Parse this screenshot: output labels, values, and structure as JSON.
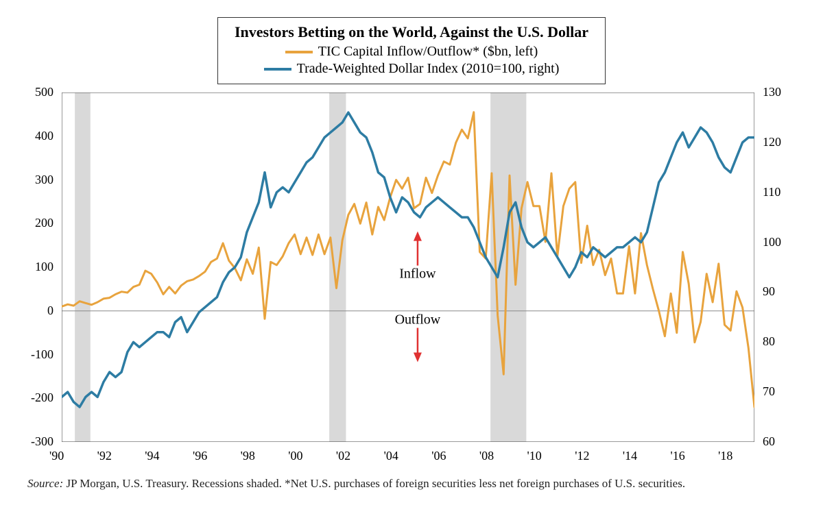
{
  "chart": {
    "type": "line",
    "title": "Investors Betting on the World, Against the U.S. Dollar",
    "title_fontsize": 22,
    "title_fontweight": "bold",
    "background_color": "#ffffff",
    "plot_border_color": "#555555",
    "series": [
      {
        "name": "TIC Capital Inflow/Outflow* ($bn, left)",
        "color": "#e8a33d",
        "axis": "left",
        "line_width": 3,
        "data": [
          [
            1990.0,
            10
          ],
          [
            1990.25,
            15
          ],
          [
            1990.5,
            12
          ],
          [
            1990.75,
            22
          ],
          [
            1991.0,
            18
          ],
          [
            1991.25,
            14
          ],
          [
            1991.5,
            20
          ],
          [
            1991.75,
            28
          ],
          [
            1992.0,
            30
          ],
          [
            1992.25,
            38
          ],
          [
            1992.5,
            44
          ],
          [
            1992.75,
            42
          ],
          [
            1993.0,
            55
          ],
          [
            1993.25,
            60
          ],
          [
            1993.5,
            92
          ],
          [
            1993.75,
            85
          ],
          [
            1994.0,
            65
          ],
          [
            1994.25,
            38
          ],
          [
            1994.5,
            55
          ],
          [
            1994.75,
            40
          ],
          [
            1995.0,
            58
          ],
          [
            1995.25,
            68
          ],
          [
            1995.5,
            72
          ],
          [
            1995.75,
            80
          ],
          [
            1996.0,
            90
          ],
          [
            1996.25,
            112
          ],
          [
            1996.5,
            120
          ],
          [
            1996.75,
            155
          ],
          [
            1997.0,
            115
          ],
          [
            1997.25,
            98
          ],
          [
            1997.5,
            70
          ],
          [
            1997.75,
            118
          ],
          [
            1998.0,
            85
          ],
          [
            1998.25,
            145
          ],
          [
            1998.5,
            -18
          ],
          [
            1998.75,
            112
          ],
          [
            1999.0,
            105
          ],
          [
            1999.25,
            125
          ],
          [
            1999.5,
            155
          ],
          [
            1999.75,
            175
          ],
          [
            2000.0,
            130
          ],
          [
            2000.25,
            168
          ],
          [
            2000.5,
            128
          ],
          [
            2000.75,
            175
          ],
          [
            2001.0,
            130
          ],
          [
            2001.25,
            168
          ],
          [
            2001.5,
            52
          ],
          [
            2001.75,
            162
          ],
          [
            2002.0,
            220
          ],
          [
            2002.25,
            245
          ],
          [
            2002.5,
            200
          ],
          [
            2002.75,
            248
          ],
          [
            2003.0,
            175
          ],
          [
            2003.25,
            238
          ],
          [
            2003.5,
            208
          ],
          [
            2003.75,
            260
          ],
          [
            2004.0,
            300
          ],
          [
            2004.25,
            280
          ],
          [
            2004.5,
            305
          ],
          [
            2004.75,
            235
          ],
          [
            2005.0,
            245
          ],
          [
            2005.25,
            305
          ],
          [
            2005.5,
            270
          ],
          [
            2005.75,
            310
          ],
          [
            2006.0,
            342
          ],
          [
            2006.25,
            335
          ],
          [
            2006.5,
            385
          ],
          [
            2006.75,
            415
          ],
          [
            2007.0,
            395
          ],
          [
            2007.25,
            455
          ],
          [
            2007.5,
            135
          ],
          [
            2007.75,
            120
          ],
          [
            2008.0,
            315
          ],
          [
            2008.25,
            -10
          ],
          [
            2008.5,
            -145
          ],
          [
            2008.75,
            310
          ],
          [
            2009.0,
            60
          ],
          [
            2009.25,
            235
          ],
          [
            2009.5,
            295
          ],
          [
            2009.75,
            240
          ],
          [
            2010.0,
            240
          ],
          [
            2010.25,
            158
          ],
          [
            2010.5,
            315
          ],
          [
            2010.75,
            125
          ],
          [
            2011.0,
            240
          ],
          [
            2011.25,
            280
          ],
          [
            2011.5,
            295
          ],
          [
            2011.75,
            110
          ],
          [
            2012.0,
            195
          ],
          [
            2012.25,
            105
          ],
          [
            2012.5,
            140
          ],
          [
            2012.75,
            82
          ],
          [
            2013.0,
            120
          ],
          [
            2013.25,
            40
          ],
          [
            2013.5,
            40
          ],
          [
            2013.75,
            148
          ],
          [
            2014.0,
            40
          ],
          [
            2014.25,
            178
          ],
          [
            2014.5,
            105
          ],
          [
            2014.75,
            50
          ],
          [
            2015.0,
            0
          ],
          [
            2015.25,
            -58
          ],
          [
            2015.5,
            40
          ],
          [
            2015.75,
            -50
          ],
          [
            2016.0,
            135
          ],
          [
            2016.25,
            62
          ],
          [
            2016.5,
            -72
          ],
          [
            2016.75,
            -25
          ],
          [
            2017.0,
            85
          ],
          [
            2017.25,
            20
          ],
          [
            2017.5,
            108
          ],
          [
            2017.75,
            -32
          ],
          [
            2018.0,
            -45
          ],
          [
            2018.25,
            45
          ],
          [
            2018.5,
            8
          ],
          [
            2018.75,
            -85
          ],
          [
            2019.0,
            -220
          ]
        ]
      },
      {
        "name": "Trade-Weighted Dollar Index (2010=100, right)",
        "color": "#2d7ca3",
        "axis": "right",
        "line_width": 3.5,
        "data": [
          [
            1990.0,
            69
          ],
          [
            1990.25,
            70
          ],
          [
            1990.5,
            68
          ],
          [
            1990.75,
            67
          ],
          [
            1991.0,
            69
          ],
          [
            1991.25,
            70
          ],
          [
            1991.5,
            69
          ],
          [
            1991.75,
            72
          ],
          [
            1992.0,
            74
          ],
          [
            1992.25,
            73
          ],
          [
            1992.5,
            74
          ],
          [
            1992.75,
            78
          ],
          [
            1993.0,
            80
          ],
          [
            1993.25,
            79
          ],
          [
            1993.5,
            80
          ],
          [
            1993.75,
            81
          ],
          [
            1994.0,
            82
          ],
          [
            1994.25,
            82
          ],
          [
            1994.5,
            81
          ],
          [
            1994.75,
            84
          ],
          [
            1995.0,
            85
          ],
          [
            1995.25,
            82
          ],
          [
            1995.5,
            84
          ],
          [
            1995.75,
            86
          ],
          [
            1996.0,
            87
          ],
          [
            1996.25,
            88
          ],
          [
            1996.5,
            89
          ],
          [
            1996.75,
            92
          ],
          [
            1997.0,
            94
          ],
          [
            1997.25,
            95
          ],
          [
            1997.5,
            97
          ],
          [
            1997.75,
            102
          ],
          [
            1998.0,
            105
          ],
          [
            1998.25,
            108
          ],
          [
            1998.5,
            114
          ],
          [
            1998.75,
            107
          ],
          [
            1999.0,
            110
          ],
          [
            1999.25,
            111
          ],
          [
            1999.5,
            110
          ],
          [
            1999.75,
            112
          ],
          [
            2000.0,
            114
          ],
          [
            2000.25,
            116
          ],
          [
            2000.5,
            117
          ],
          [
            2000.75,
            119
          ],
          [
            2001.0,
            121
          ],
          [
            2001.25,
            122
          ],
          [
            2001.5,
            123
          ],
          [
            2001.75,
            124
          ],
          [
            2002.0,
            126
          ],
          [
            2002.25,
            124
          ],
          [
            2002.5,
            122
          ],
          [
            2002.75,
            121
          ],
          [
            2003.0,
            118
          ],
          [
            2003.25,
            114
          ],
          [
            2003.5,
            113
          ],
          [
            2003.75,
            109
          ],
          [
            2004.0,
            106
          ],
          [
            2004.25,
            109
          ],
          [
            2004.5,
            108
          ],
          [
            2004.75,
            106
          ],
          [
            2005.0,
            105
          ],
          [
            2005.25,
            107
          ],
          [
            2005.5,
            108
          ],
          [
            2005.75,
            109
          ],
          [
            2006.0,
            108
          ],
          [
            2006.25,
            107
          ],
          [
            2006.5,
            106
          ],
          [
            2006.75,
            105
          ],
          [
            2007.0,
            105
          ],
          [
            2007.25,
            103
          ],
          [
            2007.5,
            100
          ],
          [
            2007.75,
            97
          ],
          [
            2008.0,
            95
          ],
          [
            2008.25,
            93
          ],
          [
            2008.5,
            99
          ],
          [
            2008.75,
            106
          ],
          [
            2009.0,
            108
          ],
          [
            2009.25,
            103
          ],
          [
            2009.5,
            100
          ],
          [
            2009.75,
            99
          ],
          [
            2010.0,
            100
          ],
          [
            2010.25,
            101
          ],
          [
            2010.5,
            99
          ],
          [
            2010.75,
            97
          ],
          [
            2011.0,
            95
          ],
          [
            2011.25,
            93
          ],
          [
            2011.5,
            95
          ],
          [
            2011.75,
            98
          ],
          [
            2012.0,
            97
          ],
          [
            2012.25,
            99
          ],
          [
            2012.5,
            98
          ],
          [
            2012.75,
            97
          ],
          [
            2013.0,
            98
          ],
          [
            2013.25,
            99
          ],
          [
            2013.5,
            99
          ],
          [
            2013.75,
            100
          ],
          [
            2014.0,
            101
          ],
          [
            2014.25,
            100
          ],
          [
            2014.5,
            102
          ],
          [
            2014.75,
            107
          ],
          [
            2015.0,
            112
          ],
          [
            2015.25,
            114
          ],
          [
            2015.5,
            117
          ],
          [
            2015.75,
            120
          ],
          [
            2016.0,
            122
          ],
          [
            2016.25,
            119
          ],
          [
            2016.5,
            121
          ],
          [
            2016.75,
            123
          ],
          [
            2017.0,
            122
          ],
          [
            2017.25,
            120
          ],
          [
            2017.5,
            117
          ],
          [
            2017.75,
            115
          ],
          [
            2018.0,
            114
          ],
          [
            2018.25,
            117
          ],
          [
            2018.5,
            120
          ],
          [
            2018.75,
            121
          ],
          [
            2019.0,
            121
          ]
        ]
      }
    ],
    "x_axis": {
      "min": 1990,
      "max": 2019,
      "ticks": [
        1990,
        1992,
        1994,
        1996,
        1998,
        2000,
        2002,
        2004,
        2006,
        2008,
        2010,
        2012,
        2014,
        2016,
        2018
      ],
      "tick_labels": [
        "'90",
        "'92",
        "'94",
        "'96",
        "'98",
        "'00",
        "'02",
        "'04",
        "'06",
        "'08",
        "'10",
        "'12",
        "'14",
        "'16",
        "'18"
      ],
      "label_fontsize": 18
    },
    "y_axis_left": {
      "min": -300,
      "max": 500,
      "ticks": [
        -300,
        -200,
        -100,
        0,
        100,
        200,
        300,
        400,
        500
      ],
      "label_fontsize": 18
    },
    "y_axis_right": {
      "min": 60,
      "max": 130,
      "ticks": [
        60,
        70,
        80,
        90,
        100,
        110,
        120,
        130
      ],
      "label_fontsize": 18
    },
    "recession_bands": {
      "color": "#d9d9d9",
      "ranges": [
        [
          1990.55,
          1991.2
        ],
        [
          2001.2,
          2001.9
        ],
        [
          2007.95,
          2009.45
        ]
      ]
    },
    "zero_line": {
      "y": 0,
      "axis": "left",
      "color": "#888888",
      "width": 1
    },
    "annotations": {
      "inflow_label": "Inflow",
      "outflow_label": "Outflow",
      "arrow_color": "#e03131",
      "position_x": 2004.9,
      "inflow_y": 85,
      "outflow_y": -20
    }
  },
  "source": {
    "prefix": "Source:",
    "text": " JP Morgan, U.S. Treasury. Recessions shaded. *Net U.S. purchases of foreign securities less net foreign purchases of U.S. securities.",
    "fontsize": 17
  }
}
